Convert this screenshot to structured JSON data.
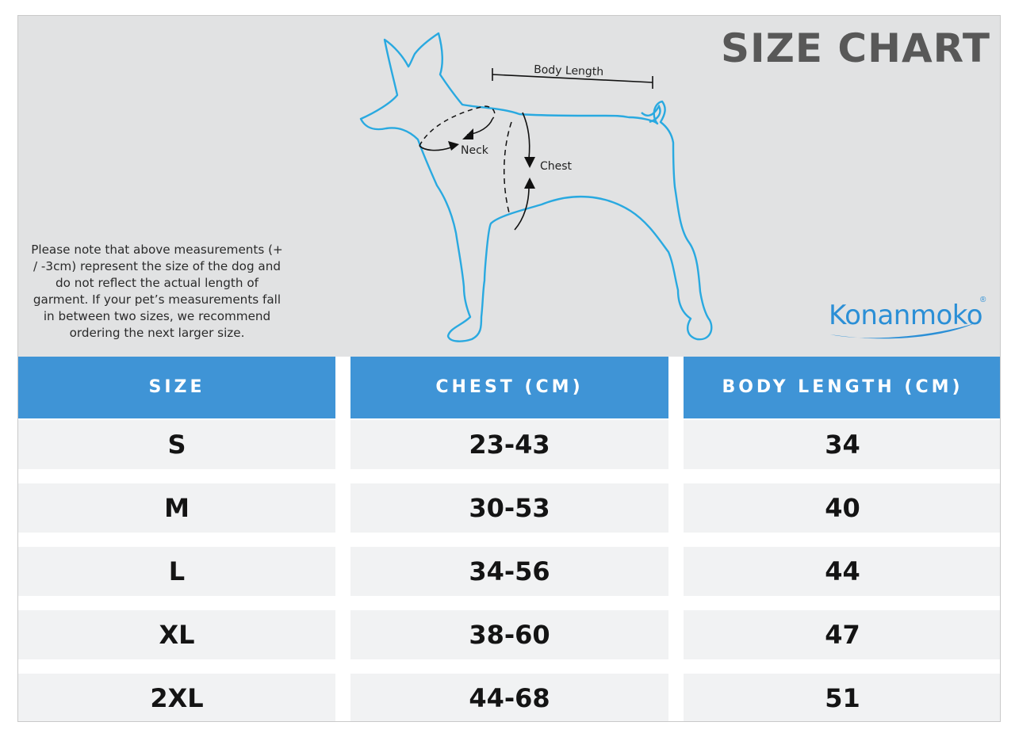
{
  "title": "SIZE CHART",
  "diagram": {
    "labels": {
      "body_length": "Body Length",
      "neck": "Neck",
      "chest": "Chest"
    },
    "outline_color": "#29a9e0"
  },
  "note": "Please note that above measurements (+ / -3cm) represent the size of the dog and do not reflect the actual length of garment.  If your pet’s measurements fall in between two sizes, we recommend ordering the next larger size.",
  "brand": {
    "name": "Konanmoko",
    "mark": "®",
    "color": "#2b8fd6"
  },
  "table": {
    "header_color": "#3f94d6",
    "columns": [
      "SIZE",
      "CHEST (CM)",
      "BODY LENGTH (CM)"
    ],
    "rows": [
      {
        "size": "S",
        "chest": "23-43",
        "body_length": "34"
      },
      {
        "size": "M",
        "chest": "30-53",
        "body_length": "40"
      },
      {
        "size": "L",
        "chest": "34-56",
        "body_length": "44"
      },
      {
        "size": "XL",
        "chest": "38-60",
        "body_length": "47"
      },
      {
        "size": "2XL",
        "chest": "44-68",
        "body_length": "51"
      }
    ]
  }
}
